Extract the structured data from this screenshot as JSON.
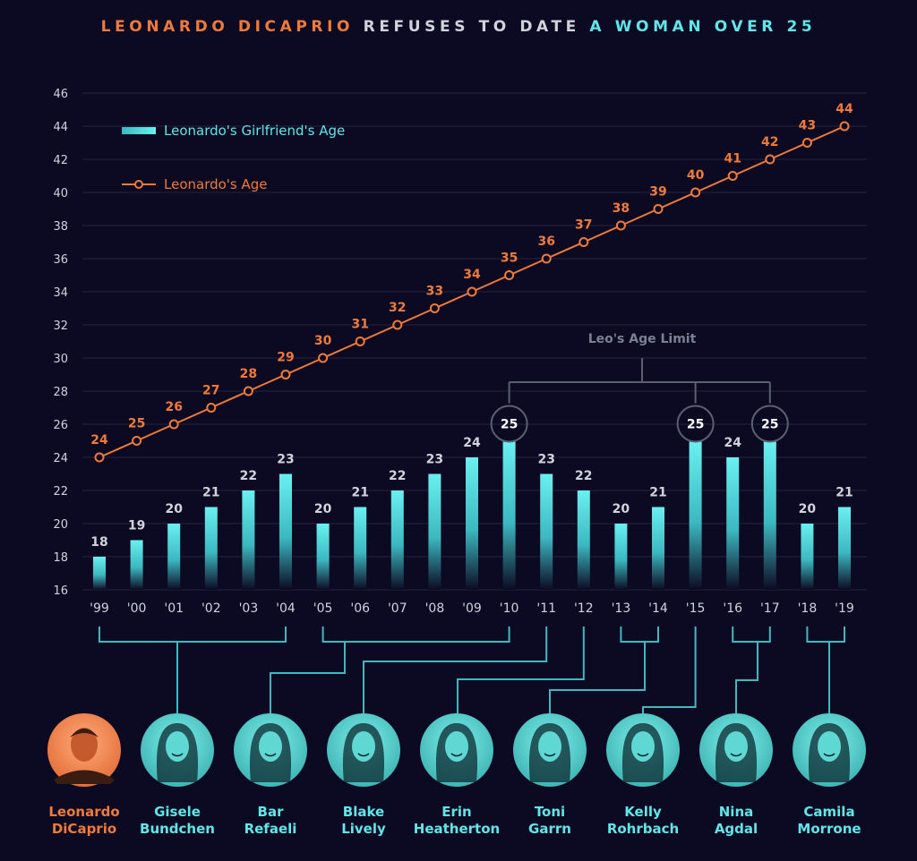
{
  "title": {
    "part1": "LEONARDO DICAPRIO",
    "part2": "REFUSES TO DATE",
    "part3": "A WOMAN OVER 25"
  },
  "colors": {
    "background": "#0c0a22",
    "leo": "#f07a3a",
    "girlfriend": "#5fe6e8",
    "grid": "#252440",
    "text": "#cfd3dc",
    "connector": "#3fb9c0"
  },
  "chart_data": {
    "type": "bar",
    "categories": [
      "'99",
      "'00",
      "'01",
      "'02",
      "'03",
      "'04",
      "'05",
      "'06",
      "'07",
      "'08",
      "'09",
      "'10",
      "'11",
      "'12",
      "'13",
      "'14",
      "'15",
      "'16",
      "'17",
      "'18",
      "'19"
    ],
    "series": [
      {
        "name": "Leonardo's Girlfriend's Age",
        "type": "bar",
        "values": [
          18,
          19,
          20,
          21,
          22,
          23,
          20,
          21,
          22,
          23,
          24,
          25,
          23,
          22,
          20,
          21,
          25,
          24,
          25,
          20,
          21
        ]
      },
      {
        "name": "Leonardo's Age",
        "type": "line",
        "values": [
          24,
          25,
          26,
          27,
          28,
          29,
          30,
          31,
          32,
          33,
          34,
          35,
          36,
          37,
          38,
          39,
          40,
          41,
          42,
          43,
          44
        ]
      }
    ],
    "ylim": [
      16,
      46
    ],
    "yticks": [
      16,
      18,
      20,
      22,
      24,
      26,
      28,
      30,
      32,
      34,
      36,
      38,
      40,
      42,
      44,
      46
    ],
    "grid": true,
    "legend": "top-left",
    "annotation": {
      "text": "Leo's Age Limit",
      "highlight": [
        "'10",
        "'15",
        "'17"
      ]
    }
  },
  "people": [
    {
      "first": "Leonardo",
      "last": "DiCaprio",
      "icon": "portrait-leonardo",
      "highlight": true
    },
    {
      "first": "Gisele",
      "last": "Bundchen",
      "icon": "portrait-gisele",
      "range": [
        "'99",
        "'04"
      ]
    },
    {
      "first": "Bar",
      "last": "Refaeli",
      "icon": "portrait-bar",
      "range": [
        "'05",
        "'10"
      ]
    },
    {
      "first": "Blake",
      "last": "Lively",
      "icon": "portrait-blake",
      "range": [
        "'11",
        "'11"
      ]
    },
    {
      "first": "Erin",
      "last": "Heatherton",
      "icon": "portrait-erin",
      "range": [
        "'12",
        "'12"
      ]
    },
    {
      "first": "Toni",
      "last": "Garrn",
      "icon": "portrait-toni",
      "range": [
        "'13",
        "'14"
      ]
    },
    {
      "first": "Kelly",
      "last": "Rohrbach",
      "icon": "portrait-kelly",
      "range": [
        "'15",
        "'15"
      ]
    },
    {
      "first": "Nina",
      "last": "Agdal",
      "icon": "portrait-nina",
      "range": [
        "'16",
        "'17"
      ]
    },
    {
      "first": "Camila",
      "last": "Morrone",
      "icon": "portrait-camila",
      "range": [
        "'18",
        "'19"
      ]
    }
  ]
}
